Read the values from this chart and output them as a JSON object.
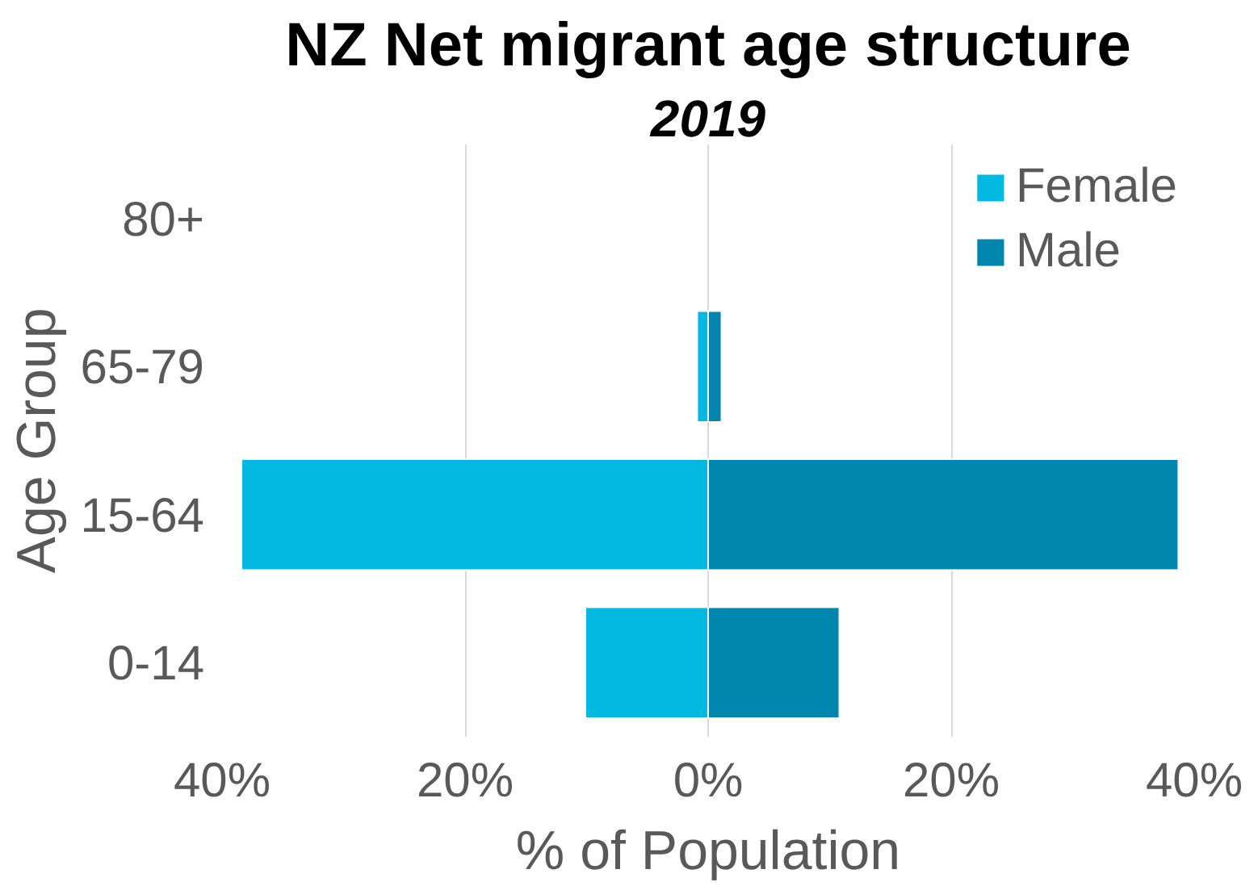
{
  "chart_data": {
    "type": "bar",
    "orientation": "horizontal",
    "title": "NZ Net migrant age structure",
    "subtitle": "2019",
    "xlabel": "% of Population",
    "ylabel": "Age Group",
    "categories": [
      "80+",
      "65-79",
      "15-64",
      "0-14"
    ],
    "series": [
      {
        "name": "Female",
        "color": "#00b8e0",
        "values": [
          null,
          -0.9,
          -38.4,
          -10.1
        ]
      },
      {
        "name": "Male",
        "color": "#0085ad",
        "values": [
          null,
          1.1,
          38.7,
          10.8
        ]
      }
    ],
    "xlim": [
      -40,
      40
    ],
    "xticks": [
      {
        "value": -40,
        "label": "40%"
      },
      {
        "value": -20,
        "label": "20%"
      },
      {
        "value": 0,
        "label": "0%"
      },
      {
        "value": 20,
        "label": "20%"
      },
      {
        "value": 40,
        "label": "40%"
      }
    ],
    "grid": "x",
    "legend": "top right",
    "stacked": true
  }
}
